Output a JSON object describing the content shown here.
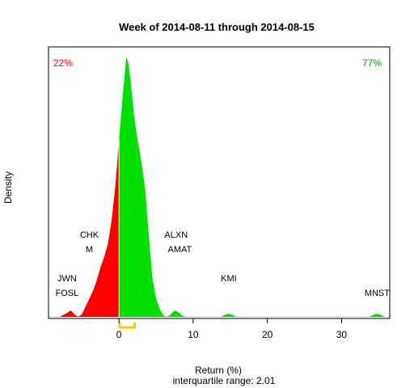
{
  "chart_data": {
    "type": "area",
    "title": "Week of 2014-08-11 through 2014-08-15",
    "xlabel": "Return (%)",
    "ylabel": "Density",
    "subtitle": "interquartile range: 2.01",
    "xlim": [
      -9.5,
      36.5
    ],
    "ylim": [
      0,
      1
    ],
    "x_ticks": [
      0,
      10,
      20,
      30
    ],
    "x_tick_labels": [
      "0",
      "10",
      "20",
      "30"
    ],
    "negative_pct_label": "22%",
    "positive_pct_label": "77%",
    "colors": {
      "negative": "#ff0000",
      "positive": "#00e000",
      "iqr_bracket": "#ffcc00",
      "baseline": "#c0c0c0"
    },
    "iqr": [
      0.1,
      2.11
    ],
    "density": [
      [
        -8.0,
        0.0
      ],
      [
        -7.0,
        0.015
      ],
      [
        -6.5,
        0.025
      ],
      [
        -6.0,
        0.01
      ],
      [
        -5.5,
        0.0
      ],
      [
        -5.0,
        0.01
      ],
      [
        -4.5,
        0.04
      ],
      [
        -4.0,
        0.07
      ],
      [
        -3.5,
        0.1
      ],
      [
        -3.0,
        0.14
      ],
      [
        -2.5,
        0.19
      ],
      [
        -2.0,
        0.23
      ],
      [
        -1.5,
        0.28
      ],
      [
        -1.0,
        0.37
      ],
      [
        -0.5,
        0.5
      ],
      [
        0.0,
        0.68
      ],
      [
        0.5,
        0.85
      ],
      [
        1.0,
        1.0
      ],
      [
        1.3,
        0.97
      ],
      [
        1.7,
        0.87
      ],
      [
        2.0,
        0.78
      ],
      [
        2.5,
        0.68
      ],
      [
        3.0,
        0.6
      ],
      [
        3.5,
        0.5
      ],
      [
        4.0,
        0.32
      ],
      [
        4.5,
        0.15
      ],
      [
        5.0,
        0.07
      ],
      [
        5.5,
        0.03
      ],
      [
        6.0,
        0.005
      ],
      [
        6.5,
        0.0
      ],
      [
        7.0,
        0.01
      ],
      [
        7.5,
        0.025
      ],
      [
        8.0,
        0.018
      ],
      [
        8.5,
        0.005
      ],
      [
        9.0,
        0.0
      ],
      [
        13.8,
        0.0
      ],
      [
        14.3,
        0.008
      ],
      [
        14.8,
        0.012
      ],
      [
        15.3,
        0.008
      ],
      [
        15.8,
        0.0
      ],
      [
        33.8,
        0.0
      ],
      [
        34.3,
        0.008
      ],
      [
        34.8,
        0.012
      ],
      [
        35.3,
        0.008
      ],
      [
        35.8,
        0.0
      ]
    ],
    "annotations": [
      {
        "label": "JWN",
        "x": -7.0,
        "row": 3
      },
      {
        "label": "FOSL",
        "x": -7.0,
        "row": 2
      },
      {
        "label": "CHK",
        "x": -4.0,
        "row": 6
      },
      {
        "label": "M",
        "x": -4.0,
        "row": 5
      },
      {
        "label": "ALXN",
        "x": 7.7,
        "row": 6
      },
      {
        "label": "AMAT",
        "x": 8.2,
        "row": 5
      },
      {
        "label": "KMI",
        "x": 14.8,
        "row": 3
      },
      {
        "label": "MNST",
        "x": 34.8,
        "row": 2
      }
    ]
  }
}
